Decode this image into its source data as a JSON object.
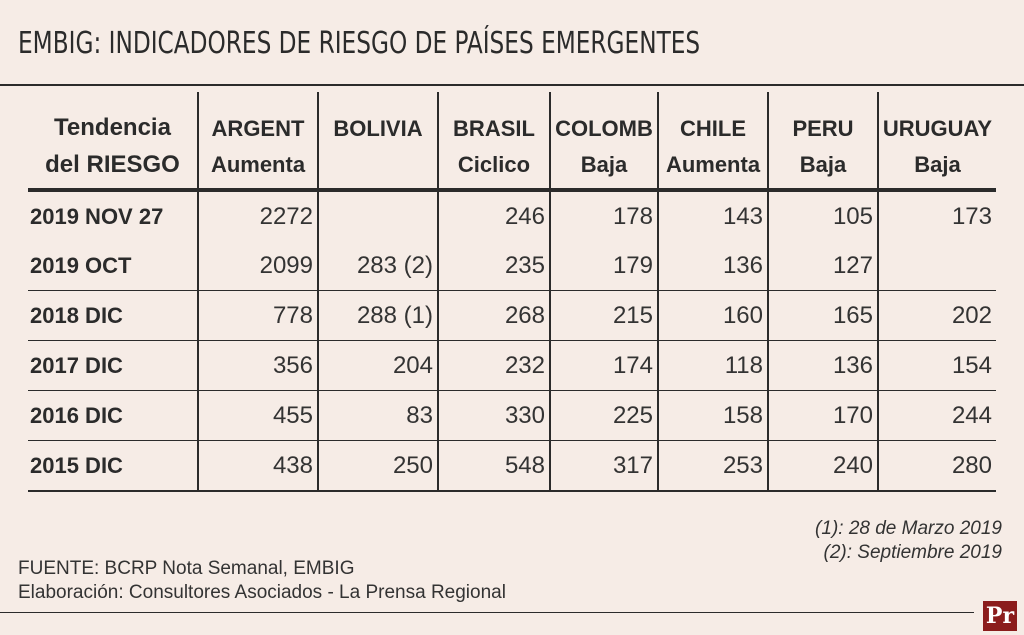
{
  "title": "EMBIG: INDICADORES DE RIESGO DE PAÍSES EMERGENTES",
  "chart_data": {
    "type": "table",
    "title": "EMBIG: INDICADORES DE RIESGO DE PAÍSES EMERGENTES",
    "header_label_line1": "Tendencia",
    "header_label_line2": "del RIESGO",
    "columns": [
      "ARGENT",
      "BOLIVIA",
      "BRASIL",
      "COLOMB",
      "CHILE",
      "PERU",
      "URUGUAY"
    ],
    "trends": [
      "Aumenta",
      "",
      "Ciclico",
      "Baja",
      "Aumenta",
      "Baja",
      "Baja"
    ],
    "rows": [
      {
        "label": "2019 NOV 27",
        "values": [
          "2272",
          "",
          "246",
          "178",
          "143",
          "105",
          "173"
        ]
      },
      {
        "label": "2019 OCT",
        "values": [
          "2099",
          "283 (2)",
          "235",
          "179",
          "136",
          "127",
          ""
        ]
      },
      {
        "label": "2018 DIC",
        "values": [
          "778",
          "288 (1)",
          "268",
          "215",
          "160",
          "165",
          "202"
        ]
      },
      {
        "label": "2017 DIC",
        "values": [
          "356",
          "204",
          "232",
          "174",
          "118",
          "136",
          "154"
        ]
      },
      {
        "label": "2016 DIC",
        "values": [
          "455",
          "83",
          "330",
          "225",
          "158",
          "170",
          "244"
        ]
      },
      {
        "label": "2015 DIC",
        "values": [
          "438",
          "250",
          "548",
          "317",
          "253",
          "240",
          "280"
        ]
      }
    ]
  },
  "notes": {
    "n1": "(1): 28 de Marzo 2019",
    "n2": "(2): Septiembre 2019"
  },
  "source": {
    "line1": "FUENTE: BCRP Nota Semanal, EMBIG",
    "line2": "Elaboración: Consultores Asociados - La Prensa Regional"
  },
  "logo_text": "Pr"
}
